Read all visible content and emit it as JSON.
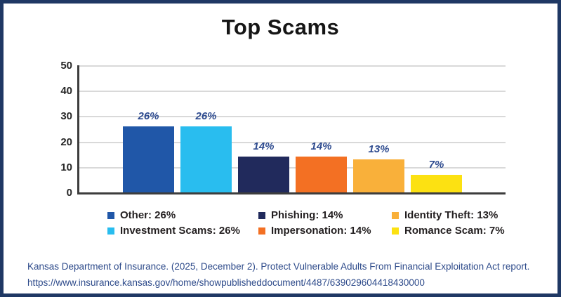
{
  "frame": {
    "border_color": "#1f3864",
    "background": "#ffffff"
  },
  "chart_data": {
    "type": "bar",
    "title": "Top Scams",
    "categories": [
      "Other",
      "Investment Scams",
      "Phishing",
      "Impersonation",
      "Identity Theft",
      "Romance Scam"
    ],
    "values": [
      26,
      26,
      14,
      14,
      13,
      7
    ],
    "value_labels": [
      "26%",
      "26%",
      "14%",
      "14%",
      "13%",
      "7%"
    ],
    "bar_colors": [
      "#2057a8",
      "#29bdef",
      "#212a5c",
      "#f37023",
      "#f9b03a",
      "#fce112"
    ],
    "xlabel": "",
    "ylabel": "",
    "ylim": [
      0,
      50
    ],
    "yticks": [
      0,
      10,
      20,
      30,
      40,
      50
    ],
    "grid": "horizontal",
    "legend_position": "bottom"
  },
  "legend": {
    "columns": [
      {
        "items": [
          {
            "label": "Other: 26%",
            "color": "#2057a8"
          },
          {
            "label": "Investment Scams: 26%",
            "color": "#29bdef"
          }
        ]
      },
      {
        "items": [
          {
            "label": "Phishing: 14%",
            "color": "#212a5c"
          },
          {
            "label": "Impersonation: 14%",
            "color": "#f37023"
          }
        ]
      },
      {
        "items": [
          {
            "label": "Identity Theft: 13%",
            "color": "#f9b03a"
          },
          {
            "label": "Romance Scam: 7%",
            "color": "#fce112"
          }
        ]
      }
    ]
  },
  "citation": {
    "line1": "Kansas Department of Insurance. (2025, December 2). Protect Vulnerable Adults From Financial Exploitation Act report.",
    "line2": "https://www.insurance.kansas.gov/home/showpublisheddocument/4487/639029604418430000"
  }
}
